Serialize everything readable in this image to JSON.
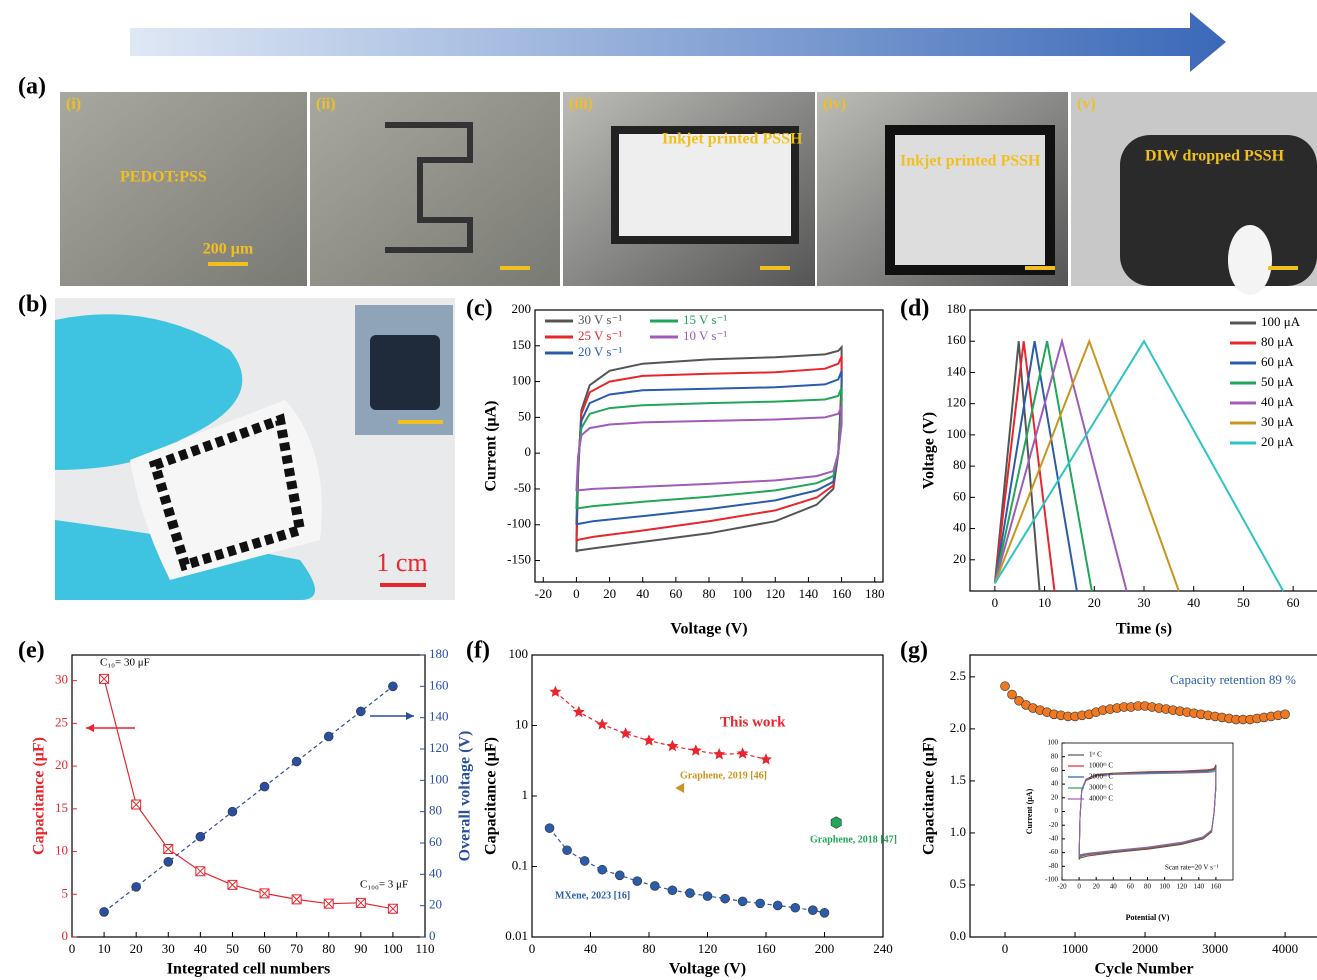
{
  "photos": {
    "a": {
      "label": "(a)",
      "frames": [
        {
          "label": "(i)",
          "caption": "PEDOT:PSS",
          "scale": "200 μm"
        },
        {
          "label": "(ii)"
        },
        {
          "label": "(iii)",
          "caption": "Inkjet printed PSSH"
        },
        {
          "label": "(iv)",
          "caption": "Inkjet printed PSSH"
        },
        {
          "label": "(v)",
          "caption": "DIW dropped PSSH"
        }
      ]
    },
    "b": {
      "label": "(b)",
      "scale": "1 cm"
    }
  },
  "chart_data": [
    {
      "panel_label": "(c)",
      "type": "line",
      "xlabel": "Voltage (V)",
      "ylabel": "Current (μA)",
      "xlim": [
        -25,
        185
      ],
      "xticks": [
        -20,
        0,
        20,
        40,
        60,
        80,
        100,
        120,
        140,
        160,
        180
      ],
      "ylim": [
        -180,
        200
      ],
      "yticks": [
        -150,
        -100,
        -50,
        0,
        50,
        100,
        150,
        200
      ],
      "legend": "upper left",
      "x": [
        0,
        1,
        3,
        8,
        20,
        40,
        80,
        120,
        150,
        158,
        160,
        160,
        158,
        155,
        145,
        120,
        80,
        40,
        10,
        1,
        0
      ],
      "series": [
        {
          "name": "30 V s⁻¹",
          "color": "#555555",
          "values": [
            -138,
            -30,
            60,
            95,
            115,
            125,
            131,
            134,
            138,
            143,
            148,
            100,
            0,
            -50,
            -72,
            -95,
            -112,
            -124,
            -133,
            -136,
            -138
          ]
        },
        {
          "name": "25 V s⁻¹",
          "color": "#e8262d",
          "values": [
            -123,
            -20,
            55,
            85,
            100,
            108,
            111,
            113,
            118,
            125,
            135,
            90,
            0,
            -45,
            -62,
            -80,
            -95,
            -108,
            -117,
            -121,
            -123
          ]
        },
        {
          "name": "20 V s⁻¹",
          "color": "#2a5caa",
          "values": [
            -100,
            -15,
            45,
            70,
            82,
            88,
            90,
            92,
            96,
            103,
            115,
            75,
            0,
            -40,
            -52,
            -66,
            -78,
            -88,
            -95,
            -99,
            -100
          ]
        },
        {
          "name": "15 V s⁻¹",
          "color": "#21a65a",
          "values": [
            -78,
            -10,
            35,
            55,
            63,
            67,
            70,
            72,
            75,
            80,
            92,
            60,
            0,
            -32,
            -42,
            -52,
            -61,
            -68,
            -74,
            -77,
            -78
          ]
        },
        {
          "name": "10 V s⁻¹",
          "color": "#a05cb8",
          "values": [
            -53,
            -5,
            25,
            35,
            40,
            43,
            45,
            47,
            50,
            55,
            65,
            40,
            0,
            -25,
            -32,
            -38,
            -43,
            -47,
            -50,
            -52,
            -53
          ]
        }
      ]
    },
    {
      "panel_label": "(d)",
      "type": "line",
      "xlabel": "Time (s)",
      "ylabel": "Voltage (V)",
      "xlim": [
        -5,
        65
      ],
      "xticks": [
        0,
        10,
        20,
        30,
        40,
        50,
        60
      ],
      "ylim": [
        0,
        180
      ],
      "yticks": [
        20,
        40,
        60,
        80,
        100,
        120,
        140,
        160,
        180
      ],
      "legend": "upper right",
      "series": [
        {
          "name": "100 μA",
          "color": "#555555",
          "x": [
            0,
            4.8,
            9
          ],
          "values": [
            5,
            160,
            0
          ]
        },
        {
          "name": "80 μA",
          "color": "#e8262d",
          "x": [
            0,
            5.8,
            12
          ],
          "values": [
            5,
            160,
            0
          ]
        },
        {
          "name": "60 μA",
          "color": "#2a5caa",
          "x": [
            0,
            8,
            16.5
          ],
          "values": [
            5,
            160,
            0
          ]
        },
        {
          "name": "50 μA",
          "color": "#21a65a",
          "x": [
            0,
            10.5,
            19.5
          ],
          "values": [
            5,
            160,
            0
          ]
        },
        {
          "name": "40 μA",
          "color": "#a05cb8",
          "x": [
            0,
            13.5,
            26.5
          ],
          "values": [
            5,
            160,
            0
          ]
        },
        {
          "name": "30 μA",
          "color": "#c89520",
          "x": [
            0,
            19,
            37
          ],
          "values": [
            5,
            160,
            0
          ]
        },
        {
          "name": "20 μA",
          "color": "#2ec4c4",
          "x": [
            0,
            30,
            58
          ],
          "values": [
            5,
            160,
            0
          ]
        }
      ]
    },
    {
      "panel_label": "(e)",
      "type": "line",
      "xlabel": "Integrated cell numbers",
      "ylabel": "Capacitance (μF)",
      "y2label": "Overall voltage (V)",
      "xlim": [
        0,
        110
      ],
      "xticks": [
        0,
        10,
        20,
        30,
        40,
        50,
        60,
        70,
        80,
        90,
        100,
        110
      ],
      "ylim": [
        0,
        33
      ],
      "yticks": [
        0,
        5,
        10,
        15,
        20,
        25,
        30
      ],
      "y2lim": [
        0,
        180
      ],
      "y2ticks": [
        0,
        20,
        40,
        60,
        80,
        100,
        120,
        140,
        160,
        180
      ],
      "x": [
        10,
        20,
        30,
        40,
        50,
        60,
        70,
        80,
        90,
        100
      ],
      "annotations": [
        "C₁₀= 30 μF",
        "C₁₀₀= 3 μF"
      ],
      "series": [
        {
          "color": "#e8262d",
          "marker": "square-x",
          "values": [
            30.2,
            15.5,
            10.3,
            7.7,
            6.1,
            5.1,
            4.4,
            3.9,
            4.0,
            3.3
          ]
        },
        {
          "color": "#2a4fa0",
          "marker": "circle",
          "dash": true,
          "axis": "y2",
          "values": [
            16,
            32,
            48,
            64,
            80,
            96,
            112,
            128,
            144,
            160
          ]
        }
      ]
    },
    {
      "panel_label": "(f)",
      "type": "line",
      "xlabel": "Voltage (V)",
      "ylabel": "Capacitance (μF)",
      "xlim": [
        0,
        240
      ],
      "xticks": [
        0,
        40,
        80,
        120,
        160,
        200,
        240
      ],
      "ylim": [
        0.01,
        100
      ],
      "ylog": true,
      "yticks": [
        0.01,
        0.1,
        1,
        10,
        100
      ],
      "series": [
        {
          "name": "This work",
          "color": "#e8262d",
          "marker": "star",
          "dash": true,
          "x": [
            16,
            32,
            48,
            64,
            80,
            96,
            112,
            128,
            144,
            160
          ],
          "values": [
            30,
            15.5,
            10.3,
            7.7,
            6.1,
            5.1,
            4.4,
            3.9,
            4.0,
            3.3
          ]
        },
        {
          "name": "Graphene, 2019 [46]",
          "color": "#c89520",
          "marker": "triangle",
          "line": false,
          "x": [
            102
          ],
          "values": [
            1.3
          ]
        },
        {
          "name": "Graphene, 2018 [47]",
          "color": "#21a65a",
          "marker": "hexagon",
          "line": false,
          "x": [
            208
          ],
          "values": [
            0.42
          ]
        },
        {
          "name": "MXene, 2023 [16]",
          "color": "#2a5caa",
          "marker": "circle",
          "dash": true,
          "x": [
            12,
            24,
            36,
            48,
            60,
            72,
            84,
            96,
            108,
            120,
            132,
            144,
            156,
            168,
            180,
            192,
            200
          ],
          "values": [
            0.35,
            0.17,
            0.12,
            0.09,
            0.075,
            0.062,
            0.053,
            0.046,
            0.042,
            0.038,
            0.035,
            0.032,
            0.03,
            0.028,
            0.026,
            0.024,
            0.022
          ]
        }
      ]
    },
    {
      "panel_label": "(g)",
      "type": "line",
      "xlabel": "Cycle Number",
      "ylabel": "Capacitance (μF)",
      "xlim": [
        -500,
        4470
      ],
      "xticks": [
        0,
        1000,
        2000,
        3000,
        4000
      ],
      "ylim": [
        0,
        2.71
      ],
      "yticks": [
        {
          "value": 0,
          "label": "0.0"
        },
        0.5,
        {
          "value": 1,
          "label": "1.0"
        },
        1.5,
        {
          "value": 2,
          "label": "2.0"
        },
        2.5
      ],
      "annotations": [
        "Capacity retention  89 %"
      ],
      "x": [
        0,
        100,
        200,
        300,
        400,
        500,
        600,
        700,
        800,
        900,
        1000,
        1100,
        1200,
        1300,
        1400,
        1500,
        1600,
        1700,
        1800,
        1900,
        2000,
        2100,
        2200,
        2300,
        2400,
        2500,
        2600,
        2700,
        2800,
        2900,
        3000,
        3100,
        3200,
        3300,
        3400,
        3500,
        3600,
        3700,
        3800,
        3900,
        4000
      ],
      "series": [
        {
          "color": "#f07820",
          "marker": "circle",
          "line": false,
          "values": [
            2.41,
            2.33,
            2.27,
            2.23,
            2.2,
            2.18,
            2.16,
            2.14,
            2.13,
            2.12,
            2.12,
            2.13,
            2.14,
            2.16,
            2.18,
            2.19,
            2.2,
            2.21,
            2.21,
            2.22,
            2.22,
            2.21,
            2.2,
            2.19,
            2.18,
            2.17,
            2.16,
            2.15,
            2.14,
            2.13,
            2.12,
            2.11,
            2.1,
            2.09,
            2.09,
            2.09,
            2.1,
            2.11,
            2.12,
            2.13,
            2.14
          ]
        }
      ]
    },
    {
      "type": "line",
      "xlabel": "Potential (V)",
      "ylabel": "Current (μA)",
      "xlim": [
        -20,
        180
      ],
      "xticks": [
        -20,
        0,
        20,
        40,
        60,
        80,
        100,
        120,
        140,
        160
      ],
      "ylim": [
        -100,
        100
      ],
      "yticks": [
        -100,
        -80,
        -60,
        -40,
        -20,
        0,
        20,
        40,
        60,
        80,
        100
      ],
      "legend": "center left",
      "annotations": [
        "Scan rate=20 V s⁻¹"
      ],
      "x": [
        0,
        1,
        3,
        8,
        20,
        40,
        80,
        120,
        150,
        158,
        160,
        160,
        158,
        155,
        145,
        120,
        80,
        40,
        10,
        1,
        0
      ],
      "series": [
        {
          "name": "1ˢᵗ C",
          "color": "#555555",
          "values": [
            -70,
            -10,
            30,
            45,
            52,
            55,
            57,
            58,
            60,
            63,
            68,
            40,
            0,
            -30,
            -40,
            -48,
            -55,
            -60,
            -65,
            -68,
            -70
          ]
        },
        {
          "name": "1000ᵗʰ C",
          "color": "#e8262d",
          "values": [
            -68,
            -9,
            32,
            47,
            54,
            56,
            58,
            59,
            61,
            62,
            65,
            38,
            0,
            -29,
            -39,
            -47,
            -54,
            -59,
            -63,
            -66,
            -68
          ]
        },
        {
          "name": "2000ᵗʰ C",
          "color": "#2a5caa",
          "values": [
            -66,
            -9,
            31,
            46,
            53,
            55,
            57,
            58,
            59,
            61,
            63,
            37,
            0,
            -28,
            -38,
            -46,
            -53,
            -58,
            -62,
            -64,
            -66
          ]
        },
        {
          "name": "3000ᵗʰ C",
          "color": "#21a65a",
          "values": [
            -67,
            -9,
            31,
            46,
            53,
            55,
            56,
            57,
            58,
            60,
            62,
            36,
            0,
            -28,
            -38,
            -46,
            -53,
            -58,
            -62,
            -65,
            -67
          ]
        },
        {
          "name": "4000ᵗʰ C",
          "color": "#a05cb8",
          "values": [
            -65,
            -8,
            30,
            45,
            52,
            54,
            55,
            56,
            57,
            58,
            60,
            35,
            0,
            -27,
            -37,
            -45,
            -52,
            -57,
            -61,
            -63,
            -65
          ]
        }
      ]
    }
  ]
}
